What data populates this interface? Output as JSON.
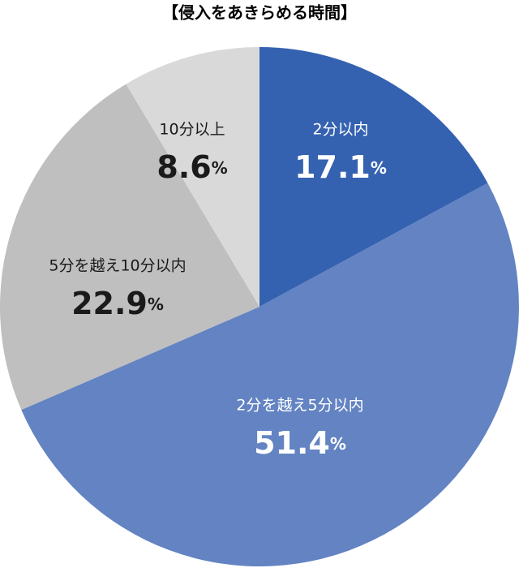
{
  "chart_data": {
    "type": "pie",
    "title": "【侵入をあきらめる時間】",
    "categories": [
      "2分以内",
      "2分を越え5分以内",
      "5分を越え10分以内",
      "10分以上"
    ],
    "values": [
      17.1,
      51.4,
      22.9,
      8.6
    ],
    "unit": "%",
    "colors": [
      "#3562b0",
      "#6383c2",
      "#bfbfbf",
      "#d9d9d9"
    ],
    "label_colors": [
      "#ffffff",
      "#ffffff",
      "#1a1a1a",
      "#1a1a1a"
    ]
  }
}
